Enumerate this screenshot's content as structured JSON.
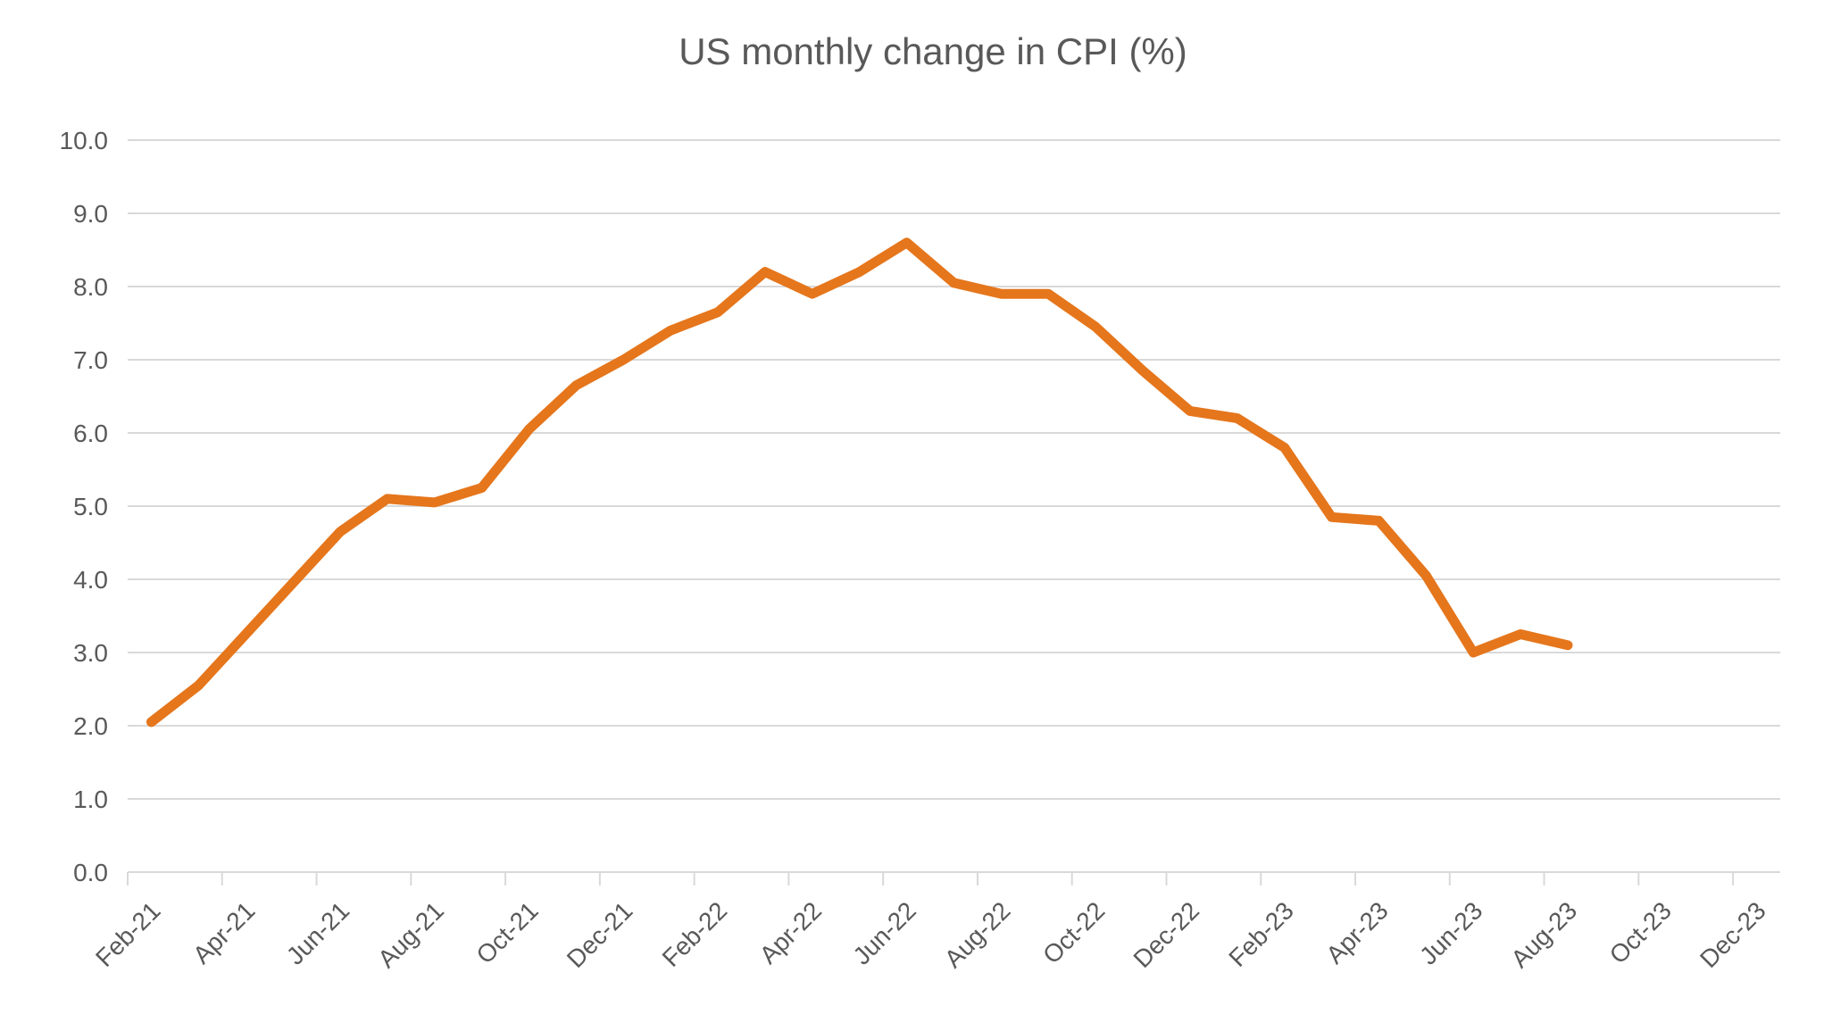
{
  "chart_data": {
    "type": "line",
    "title": "US monthly change in CPI (%)",
    "x": [
      "Feb-21",
      "Mar-21",
      "Apr-21",
      "May-21",
      "Jun-21",
      "Jul-21",
      "Aug-21",
      "Sep-21",
      "Oct-21",
      "Nov-21",
      "Dec-21",
      "Jan-22",
      "Feb-22",
      "Mar-22",
      "Apr-22",
      "May-22",
      "Jun-22",
      "Jul-22",
      "Aug-22",
      "Sep-22",
      "Oct-22",
      "Nov-22",
      "Dec-22",
      "Jan-23",
      "Feb-23",
      "Mar-23",
      "Apr-23",
      "May-23",
      "Jun-23",
      "Jul-23",
      "Aug-23"
    ],
    "values": [
      2.05,
      2.55,
      3.25,
      3.95,
      4.65,
      5.1,
      5.05,
      5.25,
      6.05,
      6.65,
      7.0,
      7.4,
      7.65,
      8.2,
      7.9,
      8.2,
      8.6,
      8.05,
      7.9,
      7.9,
      7.45,
      6.85,
      6.3,
      6.2,
      5.8,
      4.85,
      4.8,
      4.05,
      3.0,
      3.25,
      3.1
    ],
    "axis_categories": [
      "Feb-21",
      "Mar-21",
      "Apr-21",
      "May-21",
      "Jun-21",
      "Jul-21",
      "Aug-21",
      "Sep-21",
      "Oct-21",
      "Nov-21",
      "Dec-21",
      "Jan-22",
      "Feb-22",
      "Mar-22",
      "Apr-22",
      "May-22",
      "Jun-22",
      "Jul-22",
      "Aug-22",
      "Sep-22",
      "Oct-22",
      "Nov-22",
      "Dec-22",
      "Jan-23",
      "Feb-23",
      "Mar-23",
      "Apr-23",
      "May-23",
      "Jun-23",
      "Jul-23",
      "Aug-23",
      "Sep-23",
      "Oct-23",
      "Nov-23",
      "Dec-23"
    ],
    "x_axis_labels": [
      "Feb-21",
      "Apr-21",
      "Jun-21",
      "Aug-21",
      "Oct-21",
      "Dec-21",
      "Feb-22",
      "Apr-22",
      "Jun-22",
      "Aug-22",
      "Oct-22",
      "Dec-22",
      "Feb-23",
      "Apr-23",
      "Jun-23",
      "Aug-23",
      "Oct-23",
      "Dec-23"
    ],
    "y_axis_labels": [
      "0.0",
      "1.0",
      "2.0",
      "3.0",
      "4.0",
      "5.0",
      "6.0",
      "7.0",
      "8.0",
      "9.0",
      "10.0"
    ],
    "ylim": [
      0,
      10
    ],
    "ytick_step": 1,
    "xlabel": "",
    "ylabel": "",
    "grid": true,
    "legend": false,
    "colors": {
      "series_line": "#E5761C",
      "gridline": "#D9D9D9",
      "axis_line": "#D9D9D9",
      "tick_mark": "#D9D9D9",
      "label_text": "#595959",
      "title_text": "#595959",
      "background": "#FFFFFF"
    }
  }
}
